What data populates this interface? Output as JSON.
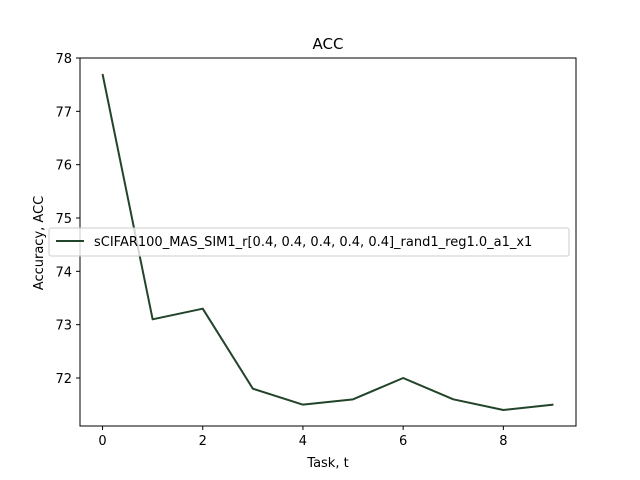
{
  "chart_data": {
    "type": "line",
    "title": "ACC",
    "xlabel": "Task, t",
    "ylabel": "Accuracy, ACC",
    "x": [
      0,
      1,
      2,
      3,
      4,
      5,
      6,
      7,
      8,
      9
    ],
    "series": [
      {
        "name": "sCIFAR100_MAS_SIM1_r[0.4, 0.4, 0.4, 0.4, 0.4]_rand1_reg1.0_a1_x1",
        "values": [
          77.7,
          73.1,
          73.3,
          71.8,
          71.5,
          71.6,
          72.0,
          71.6,
          71.4,
          71.5
        ],
        "color": "#22442a"
      }
    ],
    "xticks": [
      "0",
      "2",
      "4",
      "6",
      "8"
    ],
    "yticks": [
      "72",
      "73",
      "74",
      "75",
      "76",
      "77",
      "78"
    ],
    "xlim": [
      -0.45,
      9.45
    ],
    "ylim": [
      71.1,
      78.0
    ],
    "grid": false,
    "legend_position": "center-right"
  }
}
